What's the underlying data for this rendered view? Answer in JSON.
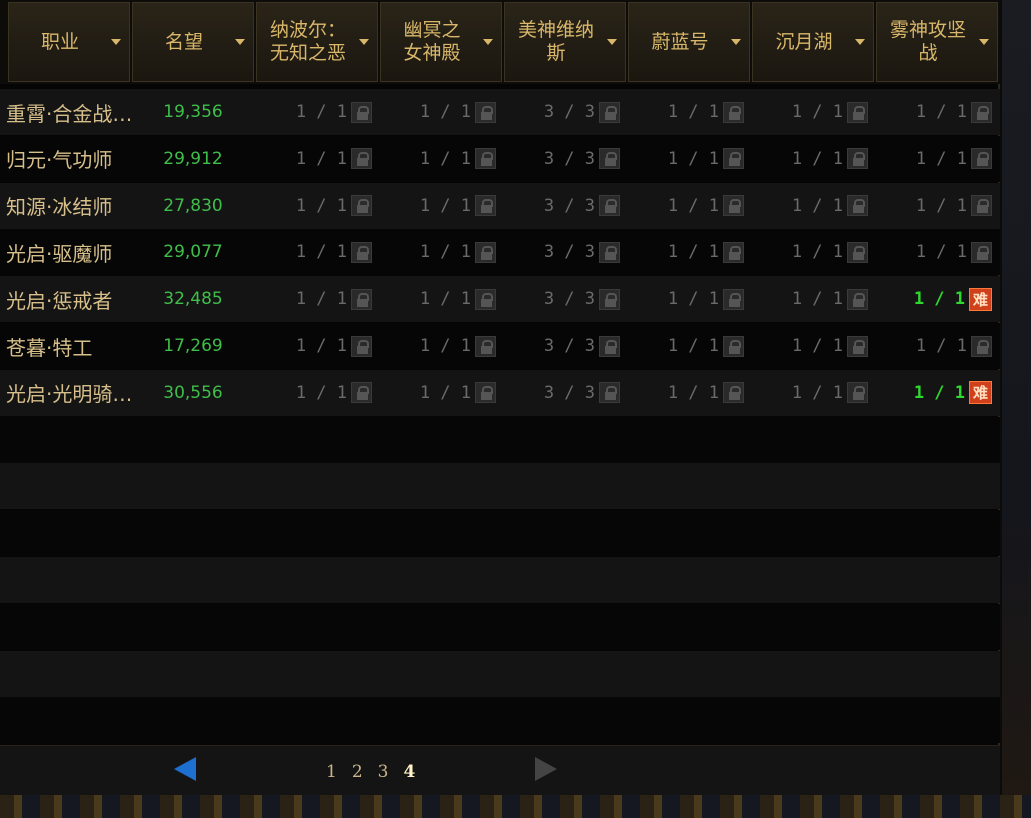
{
  "columns": [
    {
      "label": "职业"
    },
    {
      "label": "名望"
    },
    {
      "label": "纳波尔：\n无知之恶"
    },
    {
      "label": "幽冥之\n女神殿"
    },
    {
      "label": "美神维纳\n斯"
    },
    {
      "label": "蔚蓝号"
    },
    {
      "label": "沉月湖"
    },
    {
      "label": "雾神攻坚\n战"
    }
  ],
  "rows": [
    {
      "job": "重霄·合金战…",
      "fame": "19,356",
      "progress": [
        "1 / 1",
        "1 / 1",
        "3 / 3",
        "1 / 1",
        "1 / 1",
        "1 / 1"
      ],
      "last_status": "locked"
    },
    {
      "job": "归元·气功师",
      "fame": "29,912",
      "progress": [
        "1 / 1",
        "1 / 1",
        "3 / 3",
        "1 / 1",
        "1 / 1",
        "1 / 1"
      ],
      "last_status": "locked"
    },
    {
      "job": "知源·冰结师",
      "fame": "27,830",
      "progress": [
        "1 / 1",
        "1 / 1",
        "3 / 3",
        "1 / 1",
        "1 / 1",
        "1 / 1"
      ],
      "last_status": "locked"
    },
    {
      "job": "光启·驱魔师",
      "fame": "29,077",
      "progress": [
        "1 / 1",
        "1 / 1",
        "3 / 3",
        "1 / 1",
        "1 / 1",
        "1 / 1"
      ],
      "last_status": "locked"
    },
    {
      "job": "光启·惩戒者",
      "fame": "32,485",
      "progress": [
        "1 / 1",
        "1 / 1",
        "3 / 3",
        "1 / 1",
        "1 / 1",
        "1 / 1"
      ],
      "last_status": "hard"
    },
    {
      "job": " 苍暮·特工",
      "fame": "17,269",
      "progress": [
        "1 / 1",
        "1 / 1",
        "3 / 3",
        "1 / 1",
        "1 / 1",
        "1 / 1"
      ],
      "last_status": "locked"
    },
    {
      "job": "光启·光明骑…",
      "fame": "30,556",
      "progress": [
        "1 / 1",
        "1 / 1",
        "3 / 3",
        "1 / 1",
        "1 / 1",
        "1 / 1"
      ],
      "last_status": "hard"
    }
  ],
  "hard_badge": "难",
  "pagination": {
    "pages": [
      "1",
      "2",
      "3",
      "4"
    ],
    "current": "4"
  },
  "colors": {
    "header_text": "#d8b76a",
    "fame": "#3fbf4a",
    "cleared_hard": "#2fd82f",
    "hard_badge": "#d0401a",
    "prev_arrow": "#1d6fd0"
  }
}
